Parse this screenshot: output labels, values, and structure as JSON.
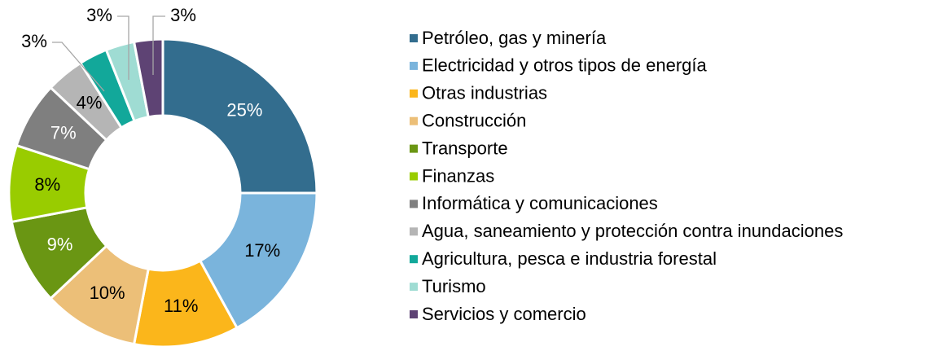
{
  "chart_data": {
    "type": "donut",
    "categories": [
      "Petróleo, gas y minería",
      "Electricidad y otros tipos de energía",
      "Otras industrias",
      "Construcción",
      "Transporte",
      "Finanzas",
      "Informática y comunicaciones",
      "Agua, saneamiento y protección contra inundaciones",
      "Agricultura, pesca e industria forestal",
      "Turismo",
      "Servicios y comercio"
    ],
    "values": [
      25,
      17,
      11,
      10,
      9,
      8,
      7,
      4,
      3,
      3,
      3
    ],
    "value_labels": [
      "25%",
      "17%",
      "11%",
      "10%",
      "9%",
      "8%",
      "7%",
      "4%",
      "3%",
      "3%",
      "3%"
    ],
    "colors": [
      "#336d8e",
      "#7ab4dc",
      "#fbb61b",
      "#ecbf78",
      "#6a9613",
      "#99cc00",
      "#7f7f7f",
      "#b5b5b5",
      "#12a89a",
      "#9fdcd3",
      "#5e4374"
    ],
    "legend": "right"
  }
}
